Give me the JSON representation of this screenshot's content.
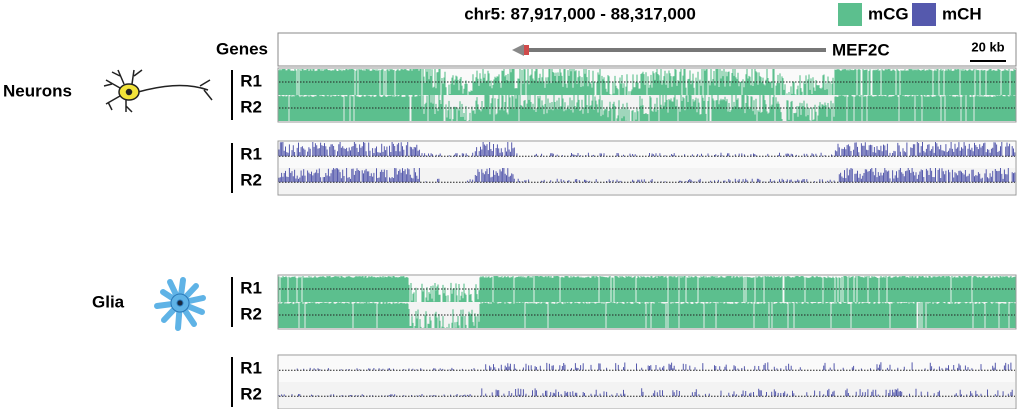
{
  "header": {
    "title": "chr5: 87,917,000 - 88,317,000",
    "legend": [
      {
        "label": "mCG",
        "color": "#5cbf8e"
      },
      {
        "label": "mCH",
        "color": "#5559ad"
      }
    ]
  },
  "genes": {
    "label": "Genes",
    "gene": "MEF2C",
    "scale": "20 kb"
  },
  "panels": [
    {
      "label": "Neurons",
      "tracks": [
        {
          "kind": "mCG",
          "rows": [
            "R1",
            "R2"
          ]
        },
        {
          "kind": "mCH",
          "rows": [
            "R1",
            "R2"
          ]
        }
      ]
    },
    {
      "label": "Glia",
      "tracks": [
        {
          "kind": "mCG",
          "rows": [
            "R1",
            "R2"
          ]
        },
        {
          "kind": "mCH",
          "rows": [
            "R1",
            "R2"
          ]
        }
      ]
    }
  ]
}
